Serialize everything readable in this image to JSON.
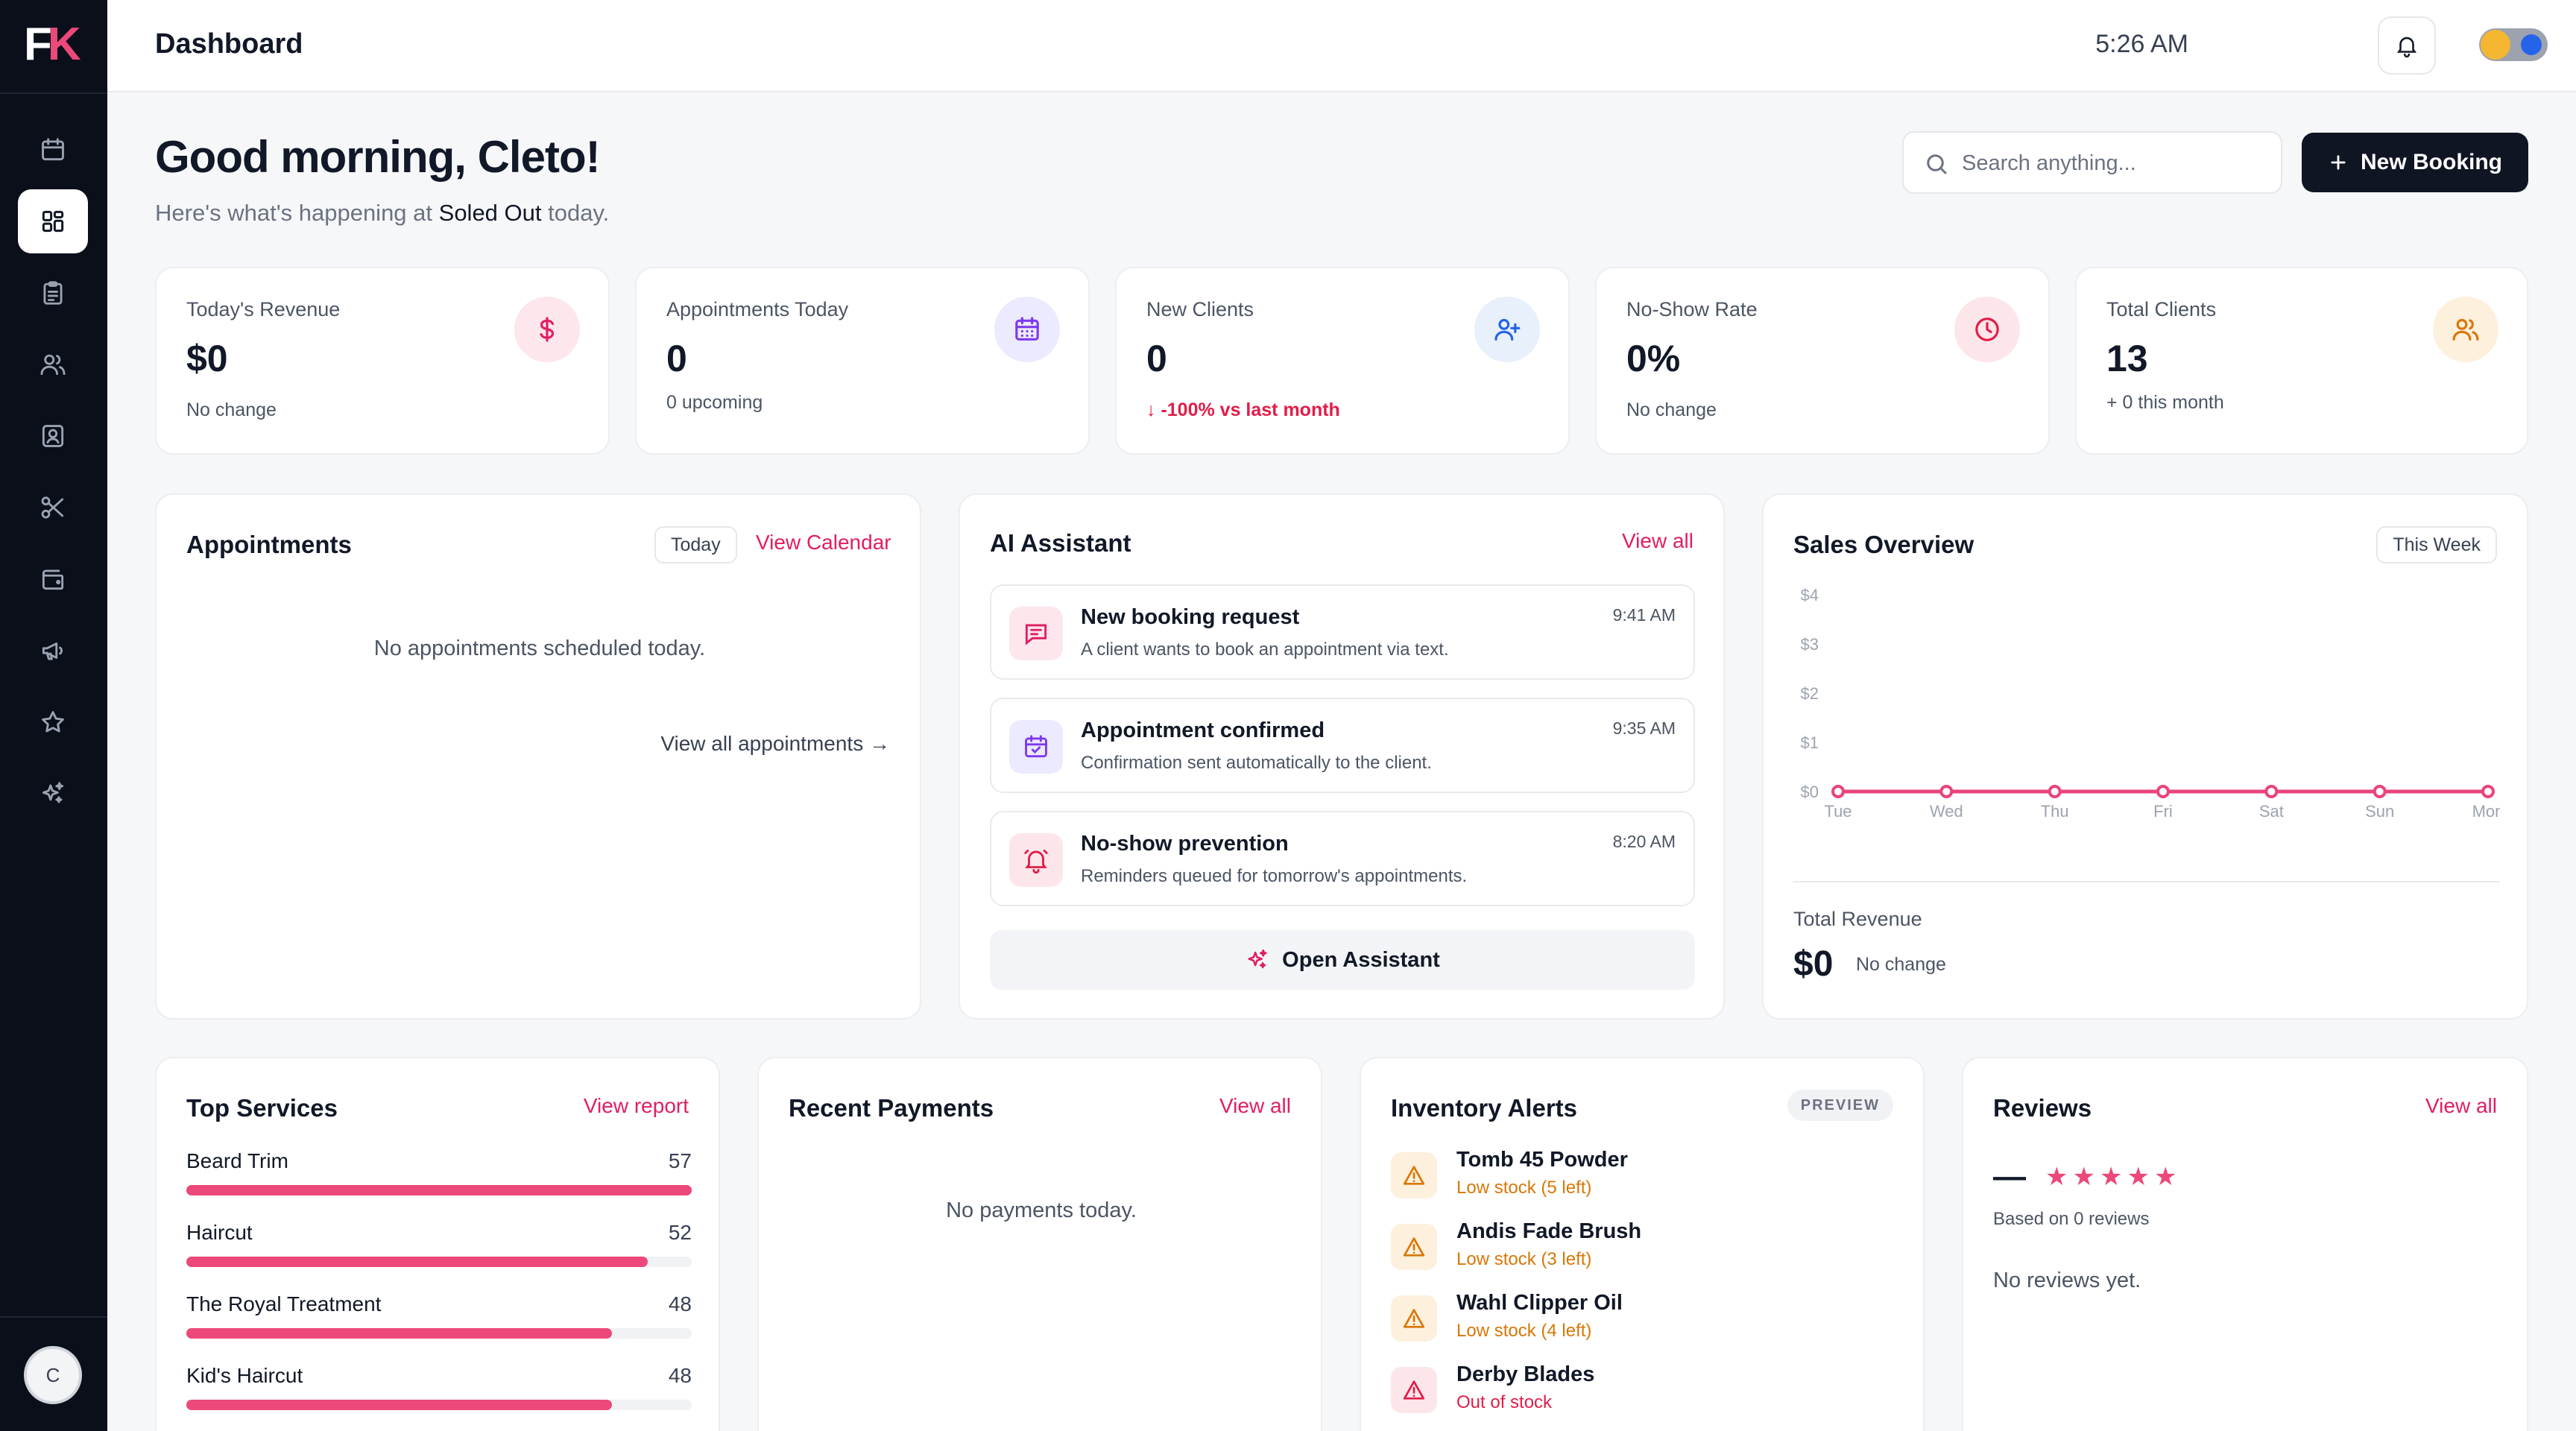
{
  "brand": {
    "logo_f": "F",
    "logo_k": "K"
  },
  "sidebar": {
    "items": [
      {
        "name": "calendar-icon"
      },
      {
        "name": "dashboard-icon"
      },
      {
        "name": "clipboard-icon"
      },
      {
        "name": "users-icon"
      },
      {
        "name": "contact-icon"
      },
      {
        "name": "scissors-icon"
      },
      {
        "name": "wallet-icon"
      },
      {
        "name": "megaphone-icon"
      },
      {
        "name": "star-icon"
      },
      {
        "name": "sparkles-icon"
      }
    ],
    "active_index": 1,
    "avatar_initial": "C"
  },
  "topbar": {
    "title": "Dashboard",
    "time": "5:26 AM"
  },
  "greeting": {
    "title": "Good morning, Cleto!",
    "sub_prefix": "Here's what's happening at",
    "business": "Soled Out",
    "sub_suffix": "today."
  },
  "search": {
    "placeholder": "Search anything..."
  },
  "new_booking": {
    "label": "New Booking"
  },
  "stats": [
    {
      "label": "Today's Revenue",
      "value": "$0",
      "note": "No change",
      "icon": "dollar-icon"
    },
    {
      "label": "Appointments Today",
      "value": "0",
      "note": "0 upcoming",
      "icon": "calendar-icon"
    },
    {
      "label": "New Clients",
      "value": "0",
      "note": "-100% vs last month",
      "icon": "user-plus-icon"
    },
    {
      "label": "No-Show Rate",
      "value": "0%",
      "note": "No change",
      "icon": "clock-icon"
    },
    {
      "label": "Total Clients",
      "value": "13",
      "note": "+ 0 this month",
      "icon": "users-icon"
    }
  ],
  "appointments": {
    "title": "Appointments",
    "filter": "Today",
    "link": "View Calendar",
    "empty": "No appointments scheduled today.",
    "view_all": "View all appointments"
  },
  "ai": {
    "title": "AI Assistant",
    "link": "View all",
    "items": [
      {
        "title": "New booking request",
        "desc": "A client wants to book an appointment via text.",
        "time": "9:41 AM",
        "icon": "message-icon"
      },
      {
        "title": "Appointment confirmed",
        "desc": "Confirmation sent automatically to the client.",
        "time": "9:35 AM",
        "icon": "calendar-check-icon"
      },
      {
        "title": "No-show prevention",
        "desc": "Reminders queued for tomorrow's appointments.",
        "time": "8:20 AM",
        "icon": "bell-alert-icon"
      }
    ],
    "open_label": "Open Assistant"
  },
  "sales": {
    "title": "Sales Overview",
    "filter": "This Week",
    "total_label": "Total Revenue",
    "total_value": "$0",
    "total_note": "No change"
  },
  "chart_data": {
    "type": "line",
    "categories": [
      "Tue",
      "Wed",
      "Thu",
      "Fri",
      "Sat",
      "Sun",
      "Mon"
    ],
    "values": [
      0,
      0,
      0,
      0,
      0,
      0,
      0
    ],
    "y_ticks": [
      "$0",
      "$1",
      "$2",
      "$3",
      "$4"
    ],
    "ylim": [
      0,
      4
    ],
    "color": "#e8457a",
    "grid": false,
    "legend": "none"
  },
  "top_services": {
    "title": "Top Services",
    "link": "View report",
    "max": 57,
    "items": [
      {
        "name": "Beard Trim",
        "count": 57
      },
      {
        "name": "Haircut",
        "count": 52
      },
      {
        "name": "The Royal Treatment",
        "count": 48
      },
      {
        "name": "Kid's Haircut",
        "count": 48
      }
    ]
  },
  "payments": {
    "title": "Recent Payments",
    "link": "View all",
    "empty": "No payments today."
  },
  "inventory": {
    "title": "Inventory Alerts",
    "badge": "PREVIEW",
    "items": [
      {
        "name": "Tomb 45 Powder",
        "status": "Low stock (5 left)",
        "level": "low"
      },
      {
        "name": "Andis Fade Brush",
        "status": "Low stock (3 left)",
        "level": "low"
      },
      {
        "name": "Wahl Clipper Oil",
        "status": "Low stock (4 left)",
        "level": "low"
      },
      {
        "name": "Derby Blades",
        "status": "Out of stock",
        "level": "out"
      }
    ]
  },
  "reviews": {
    "title": "Reviews",
    "link": "View all",
    "rating": "—",
    "stars": 5,
    "based_on": "Based on 0 reviews",
    "empty": "No reviews yet."
  },
  "colors": {
    "accent": "#ec4879",
    "dark": "#0f1523",
    "warning": "#d97706",
    "danger": "#e11d48"
  }
}
